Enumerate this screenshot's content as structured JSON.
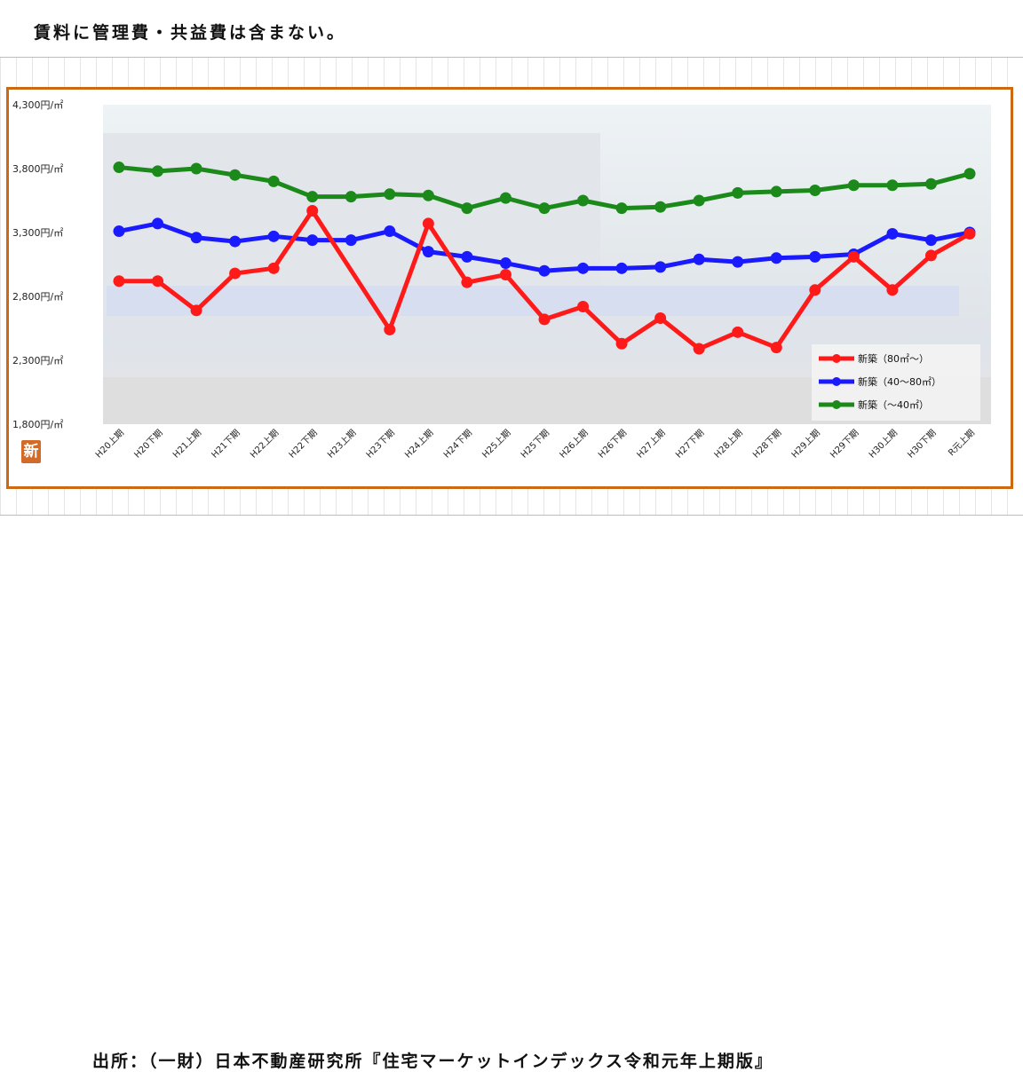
{
  "note": "賃料に管理費・共益費は含まない。",
  "source": "出所：（一財）日本不動産研究所『住宅マーケットインデックス令和元年上期版』",
  "logo_text": "新",
  "colors": {
    "frame": "#cc6a12",
    "red": "#ff1a1a",
    "blue": "#1a1aff",
    "green": "#1b8a1b"
  },
  "chart_data": {
    "type": "line",
    "ylim": [
      1800,
      4300
    ],
    "yticks": [
      1800,
      2300,
      2800,
      3300,
      3800,
      4300
    ],
    "ytick_labels": [
      "1,800円/㎡",
      "2,300円/㎡",
      "2,800円/㎡",
      "3,300円/㎡",
      "3,800円/㎡",
      "4,300円/㎡"
    ],
    "categories": [
      "H20上期",
      "H20下期",
      "H21上期",
      "H21下期",
      "H22上期",
      "H22下期",
      "H23上期",
      "H23下期",
      "H24上期",
      "H24下期",
      "H25上期",
      "H25下期",
      "H26上期",
      "H26下期",
      "H27上期",
      "H27下期",
      "H28上期",
      "H28下期",
      "H29上期",
      "H29下期",
      "H30上期",
      "H30下期",
      "R元上期"
    ],
    "legend_position": "bottom-right",
    "series": [
      {
        "name": "新築（80㎡～）",
        "color": "#ff1a1a",
        "values": [
          2920,
          2920,
          2690,
          2980,
          3020,
          3470,
          null,
          2540,
          3370,
          2910,
          2970,
          2620,
          2720,
          2430,
          2630,
          2390,
          2520,
          2400,
          2850,
          3110,
          2850,
          3120,
          3290
        ]
      },
      {
        "name": "新築（40～80㎡）",
        "color": "#1a1aff",
        "values": [
          3310,
          3370,
          3260,
          3230,
          3270,
          3240,
          3240,
          3310,
          3150,
          3110,
          3060,
          3000,
          3020,
          3020,
          3030,
          3090,
          3070,
          3100,
          3110,
          3130,
          3290,
          3240,
          3300
        ]
      },
      {
        "name": "新築（～40㎡）",
        "color": "#1b8a1b",
        "values": [
          3810,
          3780,
          3800,
          3750,
          3700,
          3580,
          3580,
          3600,
          3590,
          3490,
          3570,
          3490,
          3550,
          3490,
          3500,
          3550,
          3610,
          3620,
          3630,
          3670,
          3670,
          3680,
          3760
        ]
      }
    ]
  }
}
